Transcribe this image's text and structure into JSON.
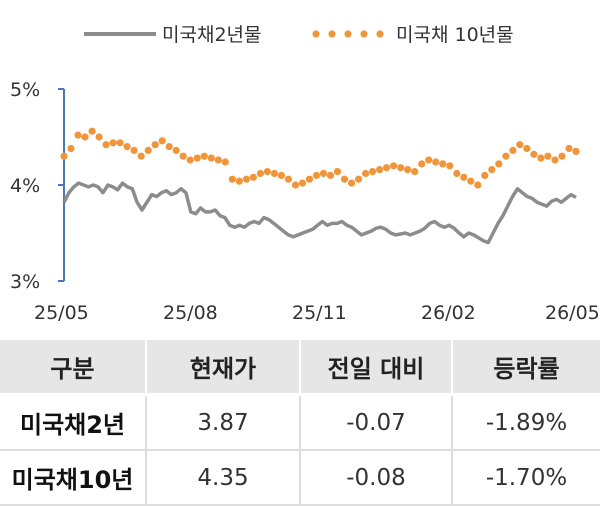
{
  "chart_data": {
    "type": "line",
    "title": "",
    "xlabel": "",
    "ylabel": "",
    "ylim": [
      3,
      5
    ],
    "yticks": [
      "3%",
      "4%",
      "5%"
    ],
    "xticks": [
      "25/05",
      "25/08",
      "25/11",
      "26/02",
      "26/05"
    ],
    "x_range": [
      "2025-05",
      "2026-05"
    ],
    "grid": false,
    "legend_position": "top",
    "series": [
      {
        "name": "미국채2년물",
        "style": "solid",
        "color": "#8c8c8c",
        "values": [
          3.82,
          3.92,
          3.98,
          4.02,
          4.0,
          3.98,
          4.0,
          3.98,
          3.92,
          4.0,
          3.98,
          3.95,
          4.02,
          3.98,
          3.96,
          3.82,
          3.74,
          3.82,
          3.9,
          3.88,
          3.92,
          3.94,
          3.9,
          3.92,
          3.96,
          3.92,
          3.72,
          3.7,
          3.76,
          3.72,
          3.72,
          3.74,
          3.68,
          3.66,
          3.58,
          3.56,
          3.58,
          3.56,
          3.6,
          3.62,
          3.6,
          3.66,
          3.64,
          3.6,
          3.56,
          3.52,
          3.48,
          3.46,
          3.48,
          3.5,
          3.52,
          3.54,
          3.58,
          3.62,
          3.58,
          3.6,
          3.6,
          3.62,
          3.58,
          3.56,
          3.52,
          3.48,
          3.5,
          3.52,
          3.55,
          3.56,
          3.54,
          3.5,
          3.48,
          3.49,
          3.5,
          3.48,
          3.5,
          3.52,
          3.55,
          3.6,
          3.62,
          3.58,
          3.56,
          3.58,
          3.55,
          3.5,
          3.46,
          3.5,
          3.48,
          3.45,
          3.42,
          3.4,
          3.5,
          3.6,
          3.68,
          3.78,
          3.88,
          3.96,
          3.92,
          3.88,
          3.86,
          3.82,
          3.8,
          3.78,
          3.83,
          3.85,
          3.82,
          3.86,
          3.9,
          3.87
        ]
      },
      {
        "name": "미국채 10년물",
        "style": "dotted",
        "color": "#f0953a",
        "values": [
          4.3,
          4.38,
          4.52,
          4.5,
          4.56,
          4.5,
          4.42,
          4.44,
          4.44,
          4.4,
          4.36,
          4.3,
          4.36,
          4.42,
          4.46,
          4.4,
          4.36,
          4.3,
          4.26,
          4.28,
          4.3,
          4.28,
          4.26,
          4.24,
          4.06,
          4.04,
          4.06,
          4.08,
          4.12,
          4.14,
          4.12,
          4.1,
          4.06,
          4.0,
          4.02,
          4.06,
          4.1,
          4.12,
          4.1,
          4.14,
          4.06,
          4.02,
          4.06,
          4.12,
          4.14,
          4.16,
          4.18,
          4.2,
          4.18,
          4.16,
          4.14,
          4.22,
          4.26,
          4.24,
          4.22,
          4.2,
          4.12,
          4.08,
          4.04,
          4.0,
          4.1,
          4.16,
          4.22,
          4.3,
          4.36,
          4.42,
          4.38,
          4.32,
          4.28,
          4.3,
          4.26,
          4.3,
          4.38,
          4.35
        ]
      }
    ]
  },
  "table": {
    "headers": [
      "구분",
      "현재가",
      "전일 대비",
      "등락률"
    ],
    "rows": [
      [
        "미국채2년",
        "3.87",
        "-0.07",
        "-1.89%"
      ],
      [
        "미국채10년",
        "4.35",
        "-0.08",
        "-1.70%"
      ]
    ]
  }
}
